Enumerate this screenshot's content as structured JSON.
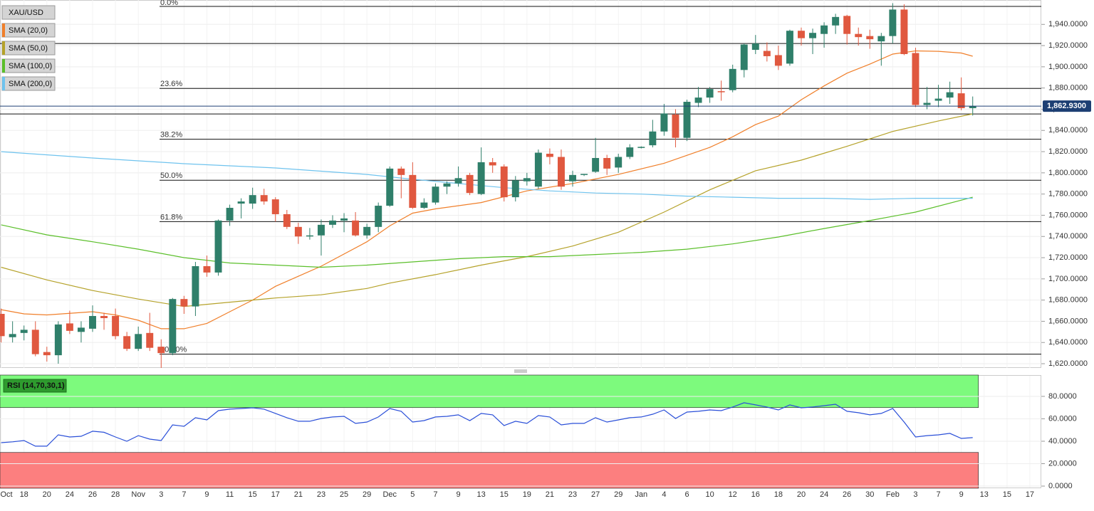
{
  "chart_data": [
    {
      "type": "candlestick",
      "symbol": "XAU/USD",
      "xlim": [
        -0.1,
        91
      ],
      "ylim": [
        1616,
        1963
      ],
      "xticks": [
        {
          "value": 0,
          "label": "Oct"
        },
        {
          "value": 2,
          "label": "18"
        },
        {
          "value": 4,
          "label": "20"
        },
        {
          "value": 6,
          "label": "24"
        },
        {
          "value": 8,
          "label": "26"
        },
        {
          "value": 10,
          "label": "28"
        },
        {
          "value": 12,
          "label": "Nov"
        },
        {
          "value": 14,
          "label": "3"
        },
        {
          "value": 16,
          "label": "7"
        },
        {
          "value": 18,
          "label": "9"
        },
        {
          "value": 20,
          "label": "11"
        },
        {
          "value": 22,
          "label": "15"
        },
        {
          "value": 24,
          "label": "17"
        },
        {
          "value": 26,
          "label": "21"
        },
        {
          "value": 28,
          "label": "23"
        },
        {
          "value": 30,
          "label": "25"
        },
        {
          "value": 32,
          "label": "29"
        },
        {
          "value": 34,
          "label": "Dec"
        },
        {
          "value": 36,
          "label": "5"
        },
        {
          "value": 38,
          "label": "7"
        },
        {
          "value": 40,
          "label": "9"
        },
        {
          "value": 42,
          "label": "13"
        },
        {
          "value": 44,
          "label": "15"
        },
        {
          "value": 46,
          "label": "19"
        },
        {
          "value": 48,
          "label": "21"
        },
        {
          "value": 50,
          "label": "23"
        },
        {
          "value": 52,
          "label": "27"
        },
        {
          "value": 54,
          "label": "29"
        },
        {
          "value": 56,
          "label": "Jan"
        },
        {
          "value": 58,
          "label": "4"
        },
        {
          "value": 60,
          "label": "6"
        },
        {
          "value": 62,
          "label": "10"
        },
        {
          "value": 64,
          "label": "12"
        },
        {
          "value": 66,
          "label": "16"
        },
        {
          "value": 68,
          "label": "18"
        },
        {
          "value": 70,
          "label": "20"
        },
        {
          "value": 72,
          "label": "24"
        },
        {
          "value": 74,
          "label": "26"
        },
        {
          "value": 76,
          "label": "30"
        },
        {
          "value": 78,
          "label": "Feb"
        },
        {
          "value": 80,
          "label": "3"
        },
        {
          "value": 82,
          "label": "7"
        },
        {
          "value": 84,
          "label": "9"
        },
        {
          "value": 86,
          "label": "13"
        },
        {
          "value": 88,
          "label": "15"
        },
        {
          "value": 90,
          "label": "17"
        }
      ],
      "yticks": [
        {
          "value": 1620,
          "label": "1,620.0000"
        },
        {
          "value": 1640,
          "label": "1,640.0000"
        },
        {
          "value": 1660,
          "label": "1,660.0000"
        },
        {
          "value": 1680,
          "label": "1,680.0000"
        },
        {
          "value": 1700,
          "label": "1,700.0000"
        },
        {
          "value": 1720,
          "label": "1,720.0000"
        },
        {
          "value": 1740,
          "label": "1,740.0000"
        },
        {
          "value": 1760,
          "label": "1,760.0000"
        },
        {
          "value": 1780,
          "label": "1,780.0000"
        },
        {
          "value": 1800,
          "label": "1,800.0000"
        },
        {
          "value": 1820,
          "label": "1,820.0000"
        },
        {
          "value": 1840,
          "label": "1,840.0000"
        },
        {
          "value": 1860,
          "label": "1,860.0000"
        },
        {
          "value": 1880,
          "label": "1,880.0000"
        },
        {
          "value": 1900,
          "label": "1,900.0000"
        },
        {
          "value": 1920,
          "label": "1,920.0000"
        },
        {
          "value": 1940,
          "label": "1,940.0000"
        }
      ],
      "up_color": "#2f7f6a",
      "down_color": "#e0583f",
      "x": [
        0,
        1,
        2,
        3,
        4,
        5,
        6,
        7,
        8,
        9,
        10,
        11,
        12,
        13,
        14,
        15,
        16,
        17,
        18,
        19,
        20,
        21,
        22,
        23,
        24,
        25,
        26,
        27,
        28,
        29,
        30,
        31,
        32,
        33,
        34,
        35,
        36,
        37,
        38,
        39,
        40,
        41,
        42,
        43,
        44,
        45,
        46,
        47,
        48,
        49,
        50,
        51,
        52,
        53,
        54,
        55,
        56,
        57,
        58,
        59,
        60,
        61,
        62,
        63,
        64,
        65,
        66,
        67,
        68,
        69,
        70,
        71,
        72,
        73,
        74,
        75,
        76,
        77,
        78,
        79,
        80,
        81,
        82,
        83,
        84,
        85
      ],
      "open": [
        1667,
        1645,
        1649,
        1652,
        1631,
        1628,
        1658,
        1650,
        1653,
        1665,
        1665,
        1646,
        1634,
        1649,
        1636,
        1630,
        1681,
        1674,
        1712,
        1706,
        1755,
        1771,
        1771,
        1779,
        1775,
        1761,
        1749,
        1740,
        1741,
        1751,
        1755,
        1755,
        1741,
        1749,
        1769,
        1804,
        1798,
        1767,
        1772,
        1787,
        1790,
        1798,
        1780,
        1810,
        1806,
        1777,
        1792,
        1787,
        1818,
        1815,
        1792,
        1798,
        1801,
        1814,
        1805,
        1815,
        1824,
        1826,
        1839,
        1855,
        1833,
        1866,
        1871,
        1877,
        1878,
        1897,
        1916,
        1915,
        1911,
        1903,
        1934,
        1927,
        1931,
        1939,
        1948,
        1931,
        1929,
        1924,
        1929,
        1954,
        1913,
        1864,
        1868,
        1871,
        1875,
        1861
      ],
      "high": [
        1672,
        1660,
        1656,
        1660,
        1636,
        1660,
        1670,
        1660,
        1675,
        1668,
        1672,
        1650,
        1655,
        1668,
        1643,
        1682,
        1684,
        1716,
        1722,
        1756,
        1770,
        1776,
        1786,
        1785,
        1777,
        1765,
        1753,
        1748,
        1756,
        1760,
        1762,
        1763,
        1752,
        1772,
        1806,
        1806,
        1810,
        1776,
        1790,
        1792,
        1806,
        1800,
        1824,
        1814,
        1808,
        1797,
        1800,
        1822,
        1823,
        1822,
        1802,
        1799,
        1833,
        1817,
        1818,
        1827,
        1825,
        1850,
        1865,
        1860,
        1869,
        1881,
        1881,
        1887,
        1902,
        1922,
        1930,
        1923,
        1920,
        1935,
        1937,
        1936,
        1942,
        1950,
        1949,
        1937,
        1935,
        1932,
        1960,
        1959,
        1918,
        1881,
        1883,
        1886,
        1890,
        1872
      ],
      "low": [
        1640,
        1640,
        1642,
        1627,
        1622,
        1620,
        1648,
        1640,
        1650,
        1652,
        1643,
        1632,
        1632,
        1632,
        1616,
        1628,
        1667,
        1665,
        1702,
        1703,
        1750,
        1757,
        1766,
        1770,
        1754,
        1747,
        1733,
        1737,
        1722,
        1748,
        1744,
        1740,
        1738,
        1744,
        1768,
        1776,
        1766,
        1766,
        1770,
        1780,
        1787,
        1779,
        1779,
        1800,
        1773,
        1773,
        1788,
        1785,
        1808,
        1784,
        1787,
        1797,
        1800,
        1798,
        1800,
        1813,
        1823,
        1824,
        1835,
        1824,
        1830,
        1862,
        1866,
        1868,
        1876,
        1890,
        1912,
        1905,
        1897,
        1901,
        1920,
        1912,
        1918,
        1931,
        1921,
        1920,
        1917,
        1901,
        1922,
        1911,
        1862,
        1860,
        1862,
        1865,
        1859,
        1854
      ],
      "close": [
        1646,
        1648,
        1652,
        1629,
        1628,
        1657,
        1651,
        1654,
        1665,
        1663,
        1646,
        1634,
        1648,
        1635,
        1630,
        1681,
        1674,
        1712,
        1706,
        1755,
        1767,
        1773,
        1779,
        1773,
        1761,
        1749,
        1740,
        1741,
        1751,
        1755,
        1757,
        1741,
        1749,
        1769,
        1804,
        1798,
        1767,
        1772,
        1787,
        1790,
        1795,
        1781,
        1810,
        1807,
        1777,
        1793,
        1795,
        1819,
        1815,
        1787,
        1798,
        1799,
        1814,
        1804,
        1815,
        1824,
        1824.5,
        1839,
        1856,
        1833,
        1867,
        1871,
        1879,
        1876,
        1898,
        1921,
        1922,
        1910,
        1901,
        1934,
        1927,
        1932,
        1939,
        1947,
        1931,
        1928,
        1926,
        1929,
        1954,
        1912,
        1864,
        1866,
        1870,
        1876,
        1861,
        1863
      ],
      "overlays": [
        {
          "name": "SMA (20,0)",
          "color": "#f07f2a",
          "x": [
            0,
            2,
            4,
            8,
            10,
            12,
            14,
            16,
            18,
            20,
            22,
            24,
            28,
            32,
            34,
            36,
            38,
            42,
            46,
            50,
            54,
            58,
            62,
            64,
            66,
            68,
            70,
            72,
            74,
            76,
            78,
            80,
            82,
            84,
            85
          ],
          "values": [
            1671,
            1667,
            1666,
            1669,
            1666,
            1661,
            1653,
            1653,
            1658,
            1669,
            1680,
            1693,
            1712,
            1735,
            1750,
            1762,
            1766,
            1772,
            1783,
            1790,
            1798.5,
            1809,
            1824,
            1834,
            1845.5,
            1853.5,
            1869,
            1882,
            1894,
            1902.5,
            1912,
            1915,
            1914.6,
            1913,
            1910
          ]
        },
        {
          "name": "SMA (50,0)",
          "color": "#b5a22a",
          "x": [
            0,
            4,
            8,
            12,
            16,
            18,
            20,
            24,
            28,
            32,
            34,
            38,
            42,
            46,
            50,
            54,
            58,
            62,
            66,
            70,
            74,
            78,
            82,
            85
          ],
          "values": [
            1711,
            1699,
            1689,
            1681,
            1674,
            1676,
            1678,
            1682,
            1685,
            1691,
            1696,
            1704,
            1713,
            1721,
            1731,
            1744,
            1763,
            1784,
            1802,
            1812,
            1825,
            1839,
            1849,
            1855.6
          ]
        },
        {
          "name": "SMA (100,0)",
          "color": "#5bbf2a",
          "x": [
            0,
            4,
            8,
            12,
            16,
            20,
            24,
            28,
            32,
            36,
            40,
            44,
            48,
            52,
            56,
            60,
            64,
            68,
            72,
            76,
            80,
            85
          ],
          "values": [
            1751,
            1741.5,
            1735,
            1728,
            1720,
            1715,
            1713,
            1711,
            1713,
            1716,
            1719,
            1721,
            1721,
            1723,
            1725,
            1728,
            1733,
            1739.5,
            1747.5,
            1755,
            1763,
            1777
          ]
        },
        {
          "name": "SMA (200,0)",
          "color": "#6fc3ee",
          "x": [
            0,
            8,
            16,
            24,
            32,
            36,
            40,
            44,
            48,
            52,
            56,
            60,
            64,
            68,
            72,
            76,
            80,
            85
          ],
          "values": [
            1820,
            1814,
            1808.6,
            1804.6,
            1798.5,
            1794,
            1790,
            1786,
            1783,
            1781,
            1780,
            1778,
            1777,
            1776,
            1776,
            1775,
            1776,
            1776
          ]
        }
      ],
      "fib_levels": [
        {
          "value": 1957,
          "label": "0.0%"
        },
        {
          "value": 1879.6,
          "label": "23.6%"
        },
        {
          "value": 1831.7,
          "label": "38.2%"
        },
        {
          "value": 1793,
          "label": "50.0%"
        },
        {
          "value": 1754,
          "label": "61.8%"
        },
        {
          "value": 1629,
          "label": "100.0%"
        }
      ],
      "levels": [
        1922,
        1855.5
      ],
      "current_price": {
        "value": 1862.93,
        "label": "1,862.9300"
      }
    },
    {
      "type": "line",
      "xlim": [
        -0.1,
        91
      ],
      "ylim": [
        -1.9,
        99
      ],
      "yticks": [
        {
          "value": 0,
          "label": "0.0000"
        },
        {
          "value": 20,
          "label": "20.0000"
        },
        {
          "value": 40,
          "label": "40.0000"
        },
        {
          "value": 60,
          "label": "60.0000"
        },
        {
          "value": 80,
          "label": "80.0000"
        }
      ],
      "overbought": 70,
      "oversold": 30,
      "overbought_color": "#7dfa7d",
      "oversold_color": "#fc7f7f",
      "series": [
        {
          "name": "RSI (14,70,30,1)",
          "color": "#2a4fd8",
          "x": [
            0,
            1,
            2,
            3,
            4,
            5,
            6,
            7,
            8,
            9,
            10,
            11,
            12,
            13,
            14,
            15,
            16,
            17,
            18,
            19,
            20,
            21,
            22,
            23,
            24,
            25,
            26,
            27,
            28,
            29,
            30,
            31,
            32,
            33,
            34,
            35,
            36,
            37,
            38,
            39,
            40,
            41,
            42,
            43,
            44,
            45,
            46,
            47,
            48,
            49,
            50,
            51,
            52,
            53,
            54,
            55,
            56,
            57,
            58,
            59,
            60,
            61,
            62,
            63,
            64,
            65,
            66,
            67,
            68,
            69,
            70,
            71,
            72,
            73,
            74,
            75,
            76,
            77,
            78,
            79,
            80,
            81,
            82,
            83,
            84,
            85
          ],
          "values": [
            38.7,
            39.5,
            40.6,
            35.6,
            35.6,
            45.7,
            43.8,
            44.4,
            48.9,
            48,
            43.8,
            40,
            45,
            41.9,
            40.6,
            54.6,
            53.3,
            61,
            59,
            67.3,
            68.6,
            69.2,
            69.8,
            68.6,
            64.8,
            61,
            57.8,
            57.8,
            60.3,
            61.6,
            62.2,
            55.9,
            57.1,
            61.6,
            69.2,
            66.7,
            57.1,
            58.4,
            61.6,
            62.2,
            63.5,
            58.4,
            64.8,
            63.5,
            54,
            57.8,
            55.9,
            62.9,
            61.6,
            54.6,
            55.9,
            55.9,
            61,
            57.1,
            59,
            61,
            61.6,
            64.1,
            67.9,
            60.3,
            66,
            66.7,
            67.9,
            67.3,
            70.5,
            74.3,
            72.4,
            70.5,
            67.9,
            72.4,
            69.8,
            70.5,
            71.7,
            73,
            66.7,
            65.4,
            63.5,
            64.8,
            69.2,
            57.1,
            43.8,
            45,
            45.7,
            47,
            42.5,
            43.2
          ]
        }
      ]
    }
  ]
}
